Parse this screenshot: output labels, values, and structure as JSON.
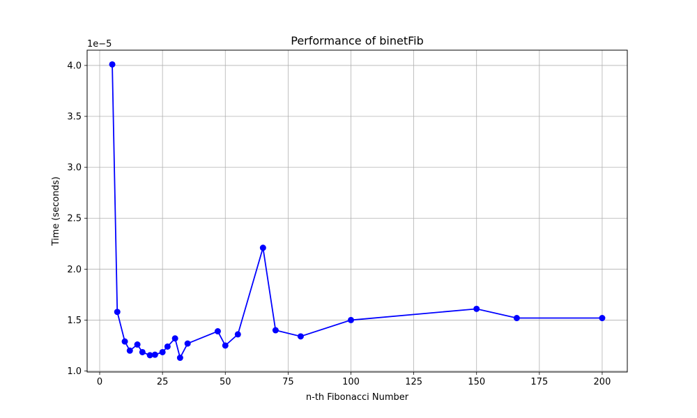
{
  "chart_data": {
    "type": "line",
    "title": "Performance of binetFib",
    "xlabel": "n-th Fibonacci Number",
    "ylabel": "Time (seconds)",
    "y_offset_label": "1e−5",
    "xlim": [
      -5,
      210
    ],
    "ylim": [
      0.99,
      4.15
    ],
    "x_ticks": [
      0,
      25,
      50,
      75,
      100,
      125,
      150,
      175,
      200
    ],
    "y_ticks": [
      1.0,
      1.5,
      2.0,
      2.5,
      3.0,
      3.5,
      4.0
    ],
    "x_tick_labels": [
      "0",
      "25",
      "50",
      "75",
      "100",
      "125",
      "150",
      "175",
      "200"
    ],
    "y_tick_labels": [
      "1.0",
      "1.5",
      "2.0",
      "2.5",
      "3.0",
      "3.5",
      "4.0"
    ],
    "grid": true,
    "line_color": "#0000ff",
    "x": [
      5,
      7,
      10,
      12,
      15,
      17,
      20,
      22,
      25,
      27,
      30,
      32,
      35,
      47,
      50,
      55,
      65,
      70,
      80,
      100,
      150,
      166,
      200
    ],
    "y": [
      4.01,
      1.58,
      1.29,
      1.2,
      1.26,
      1.185,
      1.155,
      1.16,
      1.185,
      1.24,
      1.32,
      1.13,
      1.27,
      1.39,
      1.25,
      1.36,
      2.21,
      1.4,
      1.34,
      1.5,
      1.61,
      1.52,
      1.52
    ]
  }
}
